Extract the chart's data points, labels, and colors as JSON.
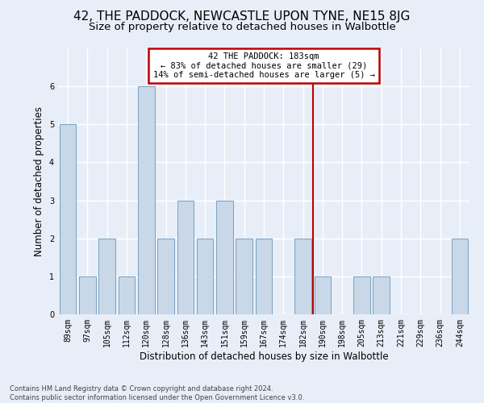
{
  "title": "42, THE PADDOCK, NEWCASTLE UPON TYNE, NE15 8JG",
  "subtitle": "Size of property relative to detached houses in Walbottle",
  "xlabel": "Distribution of detached houses by size in Walbottle",
  "ylabel": "Number of detached properties",
  "footnote": "Contains HM Land Registry data © Crown copyright and database right 2024.\nContains public sector information licensed under the Open Government Licence v3.0.",
  "categories": [
    "89sqm",
    "97sqm",
    "105sqm",
    "112sqm",
    "120sqm",
    "128sqm",
    "136sqm",
    "143sqm",
    "151sqm",
    "159sqm",
    "167sqm",
    "174sqm",
    "182sqm",
    "190sqm",
    "198sqm",
    "205sqm",
    "213sqm",
    "221sqm",
    "229sqm",
    "236sqm",
    "244sqm"
  ],
  "values": [
    5,
    1,
    2,
    1,
    6,
    2,
    3,
    2,
    3,
    2,
    2,
    0,
    2,
    1,
    0,
    1,
    1,
    0,
    0,
    0,
    2
  ],
  "bar_color": "#c8d8e8",
  "bar_edge_color": "#7aa0c0",
  "vline_color": "#c00000",
  "vline_x": 12.5,
  "annotation_text": "42 THE PADDOCK: 183sqm\n← 83% of detached houses are smaller (29)\n14% of semi-detached houses are larger (5) →",
  "annotation_box_color": "#c00000",
  "ylim": [
    0,
    7
  ],
  "yticks": [
    0,
    1,
    2,
    3,
    4,
    5,
    6,
    7
  ],
  "background_color": "#e8eef8",
  "plot_background": "#e8eef8",
  "grid_color": "#ffffff",
  "title_fontsize": 11,
  "subtitle_fontsize": 9.5,
  "axis_label_fontsize": 8.5,
  "tick_fontsize": 7,
  "ylabel_fontsize": 8.5,
  "footnote_fontsize": 6
}
